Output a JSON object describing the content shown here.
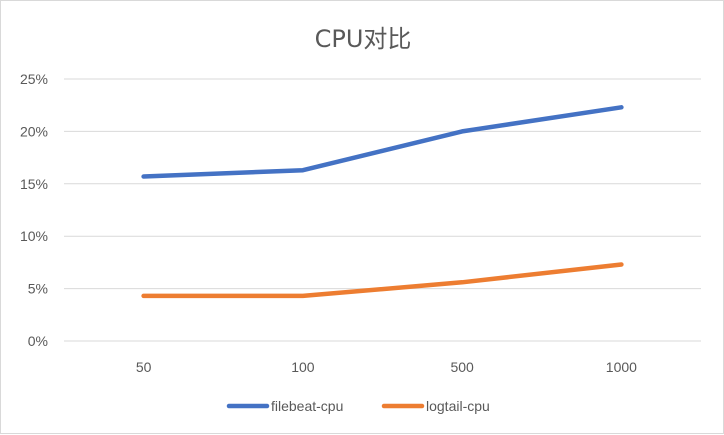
{
  "chart_data": {
    "type": "line",
    "title": "CPU对比",
    "categories": [
      "50",
      "100",
      "500",
      "1000"
    ],
    "y_ticks": [
      "0%",
      "5%",
      "10%",
      "15%",
      "20%",
      "25%"
    ],
    "ylim": [
      0,
      25
    ],
    "grid": true,
    "legend_position": "bottom",
    "series": [
      {
        "name": "filebeat-cpu",
        "color": "#4472C4",
        "values": [
          15.7,
          16.3,
          20.0,
          22.3
        ]
      },
      {
        "name": "logtail-cpu",
        "color": "#ED7D31",
        "values": [
          4.3,
          4.3,
          5.6,
          7.3
        ]
      }
    ]
  }
}
